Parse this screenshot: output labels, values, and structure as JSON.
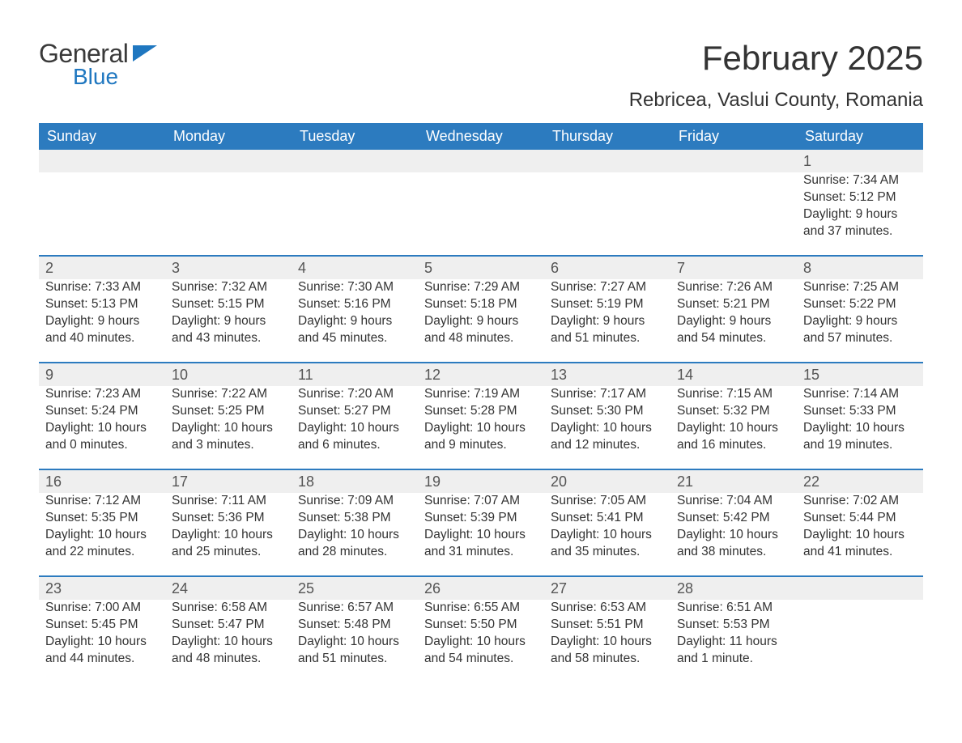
{
  "brand": {
    "word1": "General",
    "word2": "Blue"
  },
  "title": "February 2025",
  "location": "Rebricea, Vaslui County, Romania",
  "colors": {
    "header_bg": "#2c7bbf",
    "header_text": "#ffffff",
    "row_divider": "#2c7bbf",
    "daynum_bg": "#efefef",
    "brand_blue": "#1f77c0",
    "text": "#333333",
    "background": "#ffffff"
  },
  "typography": {
    "title_fontsize": 42,
    "location_fontsize": 24,
    "header_fontsize": 18,
    "daynum_fontsize": 18,
    "body_fontsize": 15.5
  },
  "day_headers": [
    "Sunday",
    "Monday",
    "Tuesday",
    "Wednesday",
    "Thursday",
    "Friday",
    "Saturday"
  ],
  "weeks": [
    [
      null,
      null,
      null,
      null,
      null,
      null,
      {
        "n": "1",
        "sunrise": "7:34 AM",
        "sunset": "5:12 PM",
        "daylight": "9 hours and 37 minutes."
      }
    ],
    [
      {
        "n": "2",
        "sunrise": "7:33 AM",
        "sunset": "5:13 PM",
        "daylight": "9 hours and 40 minutes."
      },
      {
        "n": "3",
        "sunrise": "7:32 AM",
        "sunset": "5:15 PM",
        "daylight": "9 hours and 43 minutes."
      },
      {
        "n": "4",
        "sunrise": "7:30 AM",
        "sunset": "5:16 PM",
        "daylight": "9 hours and 45 minutes."
      },
      {
        "n": "5",
        "sunrise": "7:29 AM",
        "sunset": "5:18 PM",
        "daylight": "9 hours and 48 minutes."
      },
      {
        "n": "6",
        "sunrise": "7:27 AM",
        "sunset": "5:19 PM",
        "daylight": "9 hours and 51 minutes."
      },
      {
        "n": "7",
        "sunrise": "7:26 AM",
        "sunset": "5:21 PM",
        "daylight": "9 hours and 54 minutes."
      },
      {
        "n": "8",
        "sunrise": "7:25 AM",
        "sunset": "5:22 PM",
        "daylight": "9 hours and 57 minutes."
      }
    ],
    [
      {
        "n": "9",
        "sunrise": "7:23 AM",
        "sunset": "5:24 PM",
        "daylight": "10 hours and 0 minutes."
      },
      {
        "n": "10",
        "sunrise": "7:22 AM",
        "sunset": "5:25 PM",
        "daylight": "10 hours and 3 minutes."
      },
      {
        "n": "11",
        "sunrise": "7:20 AM",
        "sunset": "5:27 PM",
        "daylight": "10 hours and 6 minutes."
      },
      {
        "n": "12",
        "sunrise": "7:19 AM",
        "sunset": "5:28 PM",
        "daylight": "10 hours and 9 minutes."
      },
      {
        "n": "13",
        "sunrise": "7:17 AM",
        "sunset": "5:30 PM",
        "daylight": "10 hours and 12 minutes."
      },
      {
        "n": "14",
        "sunrise": "7:15 AM",
        "sunset": "5:32 PM",
        "daylight": "10 hours and 16 minutes."
      },
      {
        "n": "15",
        "sunrise": "7:14 AM",
        "sunset": "5:33 PM",
        "daylight": "10 hours and 19 minutes."
      }
    ],
    [
      {
        "n": "16",
        "sunrise": "7:12 AM",
        "sunset": "5:35 PM",
        "daylight": "10 hours and 22 minutes."
      },
      {
        "n": "17",
        "sunrise": "7:11 AM",
        "sunset": "5:36 PM",
        "daylight": "10 hours and 25 minutes."
      },
      {
        "n": "18",
        "sunrise": "7:09 AM",
        "sunset": "5:38 PM",
        "daylight": "10 hours and 28 minutes."
      },
      {
        "n": "19",
        "sunrise": "7:07 AM",
        "sunset": "5:39 PM",
        "daylight": "10 hours and 31 minutes."
      },
      {
        "n": "20",
        "sunrise": "7:05 AM",
        "sunset": "5:41 PM",
        "daylight": "10 hours and 35 minutes."
      },
      {
        "n": "21",
        "sunrise": "7:04 AM",
        "sunset": "5:42 PM",
        "daylight": "10 hours and 38 minutes."
      },
      {
        "n": "22",
        "sunrise": "7:02 AM",
        "sunset": "5:44 PM",
        "daylight": "10 hours and 41 minutes."
      }
    ],
    [
      {
        "n": "23",
        "sunrise": "7:00 AM",
        "sunset": "5:45 PM",
        "daylight": "10 hours and 44 minutes."
      },
      {
        "n": "24",
        "sunrise": "6:58 AM",
        "sunset": "5:47 PM",
        "daylight": "10 hours and 48 minutes."
      },
      {
        "n": "25",
        "sunrise": "6:57 AM",
        "sunset": "5:48 PM",
        "daylight": "10 hours and 51 minutes."
      },
      {
        "n": "26",
        "sunrise": "6:55 AM",
        "sunset": "5:50 PM",
        "daylight": "10 hours and 54 minutes."
      },
      {
        "n": "27",
        "sunrise": "6:53 AM",
        "sunset": "5:51 PM",
        "daylight": "10 hours and 58 minutes."
      },
      {
        "n": "28",
        "sunrise": "6:51 AM",
        "sunset": "5:53 PM",
        "daylight": "11 hours and 1 minute."
      },
      null
    ]
  ],
  "labels": {
    "sunrise": "Sunrise: ",
    "sunset": "Sunset: ",
    "daylight": "Daylight: "
  }
}
